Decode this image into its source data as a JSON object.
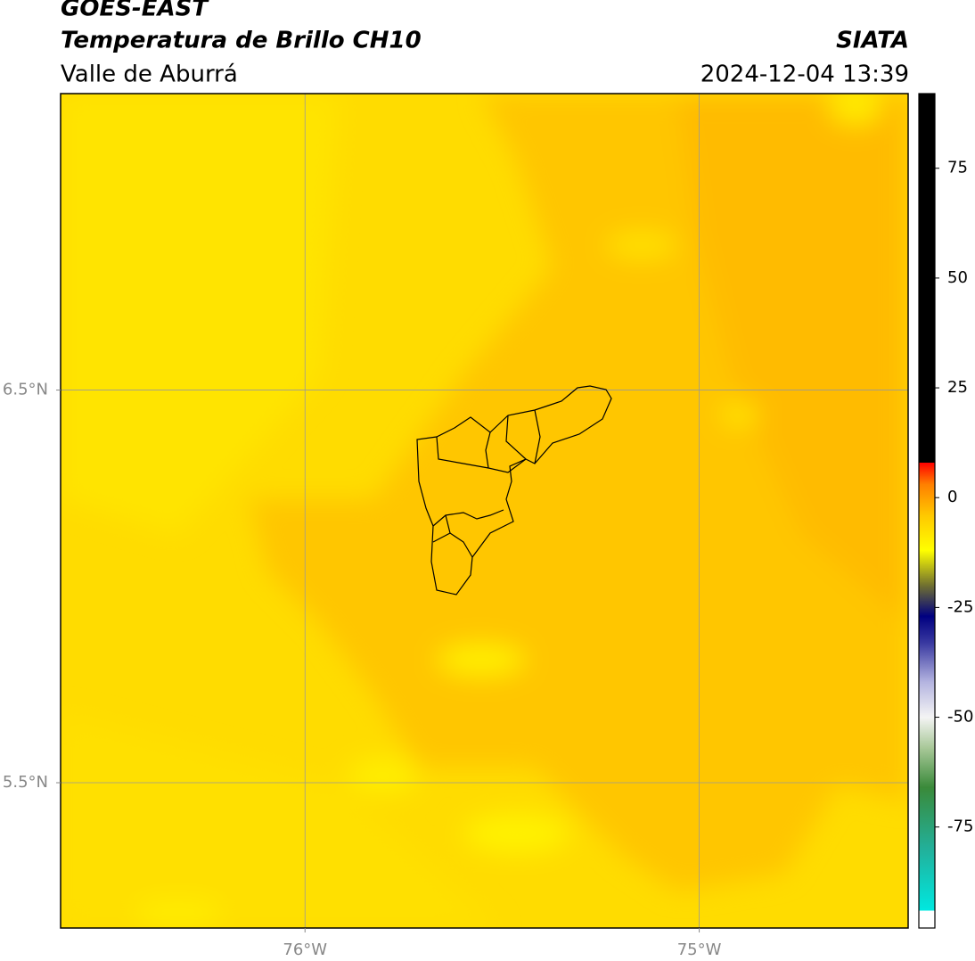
{
  "header": {
    "satellite": "GOES-EAST",
    "product": "Temperatura de Brillo CH10",
    "region": "Valle de Aburrá",
    "source": "SIATA",
    "datetime": "2024-12-04 13:39"
  },
  "map": {
    "xlim": [
      -76.62,
      -74.47
    ],
    "ylim": [
      5.13,
      7.255
    ],
    "xticks": [
      {
        "value": -76,
        "label": "76°W"
      },
      {
        "value": -75,
        "label": "75°W"
      }
    ],
    "yticks": [
      {
        "value": 5.5,
        "label": "5.5°N"
      },
      {
        "value": 6.5,
        "label": "6.5°N"
      }
    ],
    "grid": true
  },
  "colorbar": {
    "range": [
      -98,
      92
    ],
    "ticks": [
      -75,
      -50,
      -25,
      0,
      25,
      50,
      75
    ],
    "stops": [
      {
        "value": -98,
        "color": "#ffffff"
      },
      {
        "value": -94,
        "color": "#ffffff"
      },
      {
        "value": -94,
        "color": "#00e8e0"
      },
      {
        "value": -80,
        "color": "#22b09a"
      },
      {
        "value": -66,
        "color": "#3a8a3a"
      },
      {
        "value": -57,
        "color": "#a8c898"
      },
      {
        "value": -50,
        "color": "#f4f4f4"
      },
      {
        "value": -42,
        "color": "#b4b4e0"
      },
      {
        "value": -33,
        "color": "#3838a0"
      },
      {
        "value": -27,
        "color": "#000080"
      },
      {
        "value": -20,
        "color": "#707030"
      },
      {
        "value": -12,
        "color": "#ffff00"
      },
      {
        "value": -4,
        "color": "#ffc800"
      },
      {
        "value": 3,
        "color": "#ff8000"
      },
      {
        "value": 8,
        "color": "#ff0000"
      },
      {
        "value": 8,
        "color": "#000000"
      },
      {
        "value": 92,
        "color": "#000000"
      }
    ]
  }
}
